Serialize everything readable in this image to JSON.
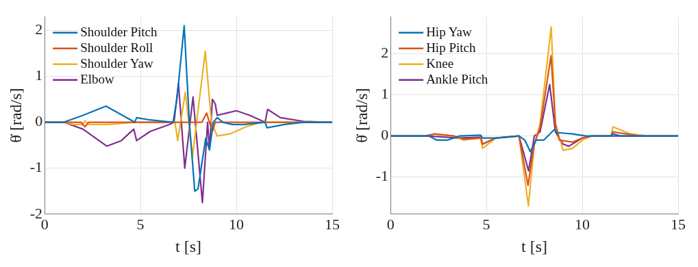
{
  "chart_data": [
    {
      "type": "line",
      "xlabel": "t [s]",
      "ylabel": "θ̇ [rad/s]",
      "xlim": [
        0,
        15
      ],
      "xticks": [
        0,
        5,
        10,
        15
      ],
      "ylim": [
        -2,
        2.3
      ],
      "yticks": [
        -2,
        -1,
        0,
        1,
        2
      ],
      "grid": true,
      "legend": "top left",
      "marker": "none",
      "line_style": "solid",
      "series": [
        {
          "name": "Shoulder Pitch",
          "color": "#0072bd",
          "x": [
            0,
            1,
            2,
            3.2,
            4.7,
            4.8,
            5.5,
            6.7,
            6.9,
            7.28,
            7.55,
            7.83,
            8.0,
            8.4,
            8.6,
            8.8,
            9.0,
            9.3,
            9.8,
            10.4,
            11.5,
            11.6,
            12.5,
            13.5,
            15
          ],
          "values": [
            0,
            0,
            0.15,
            0.35,
            0,
            0.1,
            0.05,
            0,
            0.5,
            2.1,
            0,
            -1.5,
            -1.45,
            -0.35,
            -0.6,
            0,
            0.1,
            0,
            -0.05,
            -0.05,
            0,
            -0.12,
            -0.05,
            0,
            0
          ]
        },
        {
          "name": "Shoulder Roll",
          "color": "#d95319",
          "x": [
            0,
            1.9,
            2.1,
            2.3,
            8.2,
            8.45,
            8.6,
            8.75,
            8.9,
            15
          ],
          "values": [
            0,
            0,
            -0.1,
            0,
            0,
            0.2,
            0,
            -0.2,
            0,
            0
          ]
        },
        {
          "name": "Shoulder Yaw",
          "color": "#edb120",
          "x": [
            0,
            1,
            1.5,
            2.0,
            2.1,
            2.3,
            3.3,
            4.7,
            6.8,
            6.94,
            7.34,
            7.71,
            8.38,
            8.7,
            9.0,
            9.7,
            10.5,
            11.3,
            15
          ],
          "values": [
            0,
            0,
            -0.05,
            -0.05,
            0.03,
            -0.05,
            -0.05,
            0,
            0,
            -0.4,
            0.65,
            -0.75,
            1.55,
            0,
            -0.3,
            -0.25,
            -0.1,
            0,
            0
          ]
        },
        {
          "name": "Elbow",
          "color": "#7e2f8e",
          "x": [
            0,
            1,
            2,
            3.24,
            4,
            4.65,
            4.8,
            5.5,
            6.5,
            6.75,
            6.98,
            7.31,
            7.74,
            8.23,
            8.5,
            8.6,
            8.75,
            8.9,
            9.0,
            9.5,
            10.0,
            10.7,
            11.5,
            11.63,
            12.3,
            13.5,
            15
          ],
          "values": [
            0,
            0,
            -0.15,
            -0.52,
            -0.4,
            -0.15,
            -0.4,
            -0.2,
            -0.05,
            0,
            0.85,
            -1,
            0.55,
            -1.75,
            0,
            -0.6,
            0.5,
            0.4,
            0.15,
            0.2,
            0.25,
            0.15,
            0,
            0.28,
            0.1,
            0.02,
            0
          ]
        }
      ]
    },
    {
      "type": "line",
      "xlabel": "t [s]",
      "ylabel": "θ̇ [rad/s]",
      "xlim": [
        0,
        15
      ],
      "xticks": [
        0,
        5,
        10,
        15
      ],
      "ylim": [
        -1.9,
        2.9
      ],
      "yticks": [
        -1,
        0,
        1,
        2
      ],
      "grid": true,
      "legend": "top left",
      "marker": "none",
      "line_style": "solid",
      "series": [
        {
          "name": "Hip Yaw",
          "color": "#0072bd",
          "x": [
            0,
            2,
            2.4,
            3,
            3.6,
            4.7,
            4.8,
            5.5,
            6.7,
            7.0,
            7.29,
            7.6,
            8.0,
            8.53,
            8.7,
            9.5,
            10.2,
            11.5,
            11.6,
            12,
            15
          ],
          "values": [
            0,
            0,
            -0.1,
            -0.1,
            0,
            0.02,
            -0.05,
            -0.05,
            0,
            -0.1,
            -0.38,
            -0.1,
            -0.1,
            0.15,
            0.08,
            0.05,
            0,
            0,
            0.05,
            0,
            0
          ]
        },
        {
          "name": "Hip Pitch",
          "color": "#d95319",
          "x": [
            0,
            1.8,
            2.3,
            3.3,
            3.8,
            4.7,
            4.8,
            5.5,
            6.7,
            7.17,
            7.5,
            7.8,
            8.37,
            8.6,
            8.8,
            9.5,
            10.0,
            10.5,
            11.5,
            11.6,
            13,
            15
          ],
          "values": [
            0,
            0,
            0.05,
            0,
            -0.08,
            -0.05,
            -0.2,
            -0.05,
            0,
            -1.2,
            -0.2,
            0.2,
            1.95,
            0.3,
            -0.1,
            -0.15,
            -0.05,
            0,
            0,
            0.1,
            0,
            0
          ]
        },
        {
          "name": "Knee",
          "color": "#edb120",
          "x": [
            0,
            1.8,
            2.3,
            3.3,
            3.8,
            4.7,
            4.8,
            5.5,
            6.7,
            7.19,
            7.5,
            7.8,
            8.38,
            8.6,
            9.0,
            9.5,
            10.0,
            10.5,
            11.5,
            11.6,
            12.5,
            13.5,
            15
          ],
          "values": [
            0,
            0,
            0.05,
            0,
            -0.1,
            -0.05,
            -0.3,
            -0.05,
            0,
            -1.7,
            -0.2,
            0.3,
            2.65,
            0.3,
            -0.35,
            -0.3,
            -0.1,
            0,
            0,
            0.22,
            0.05,
            0,
            0
          ]
        },
        {
          "name": "Ankle Pitch",
          "color": "#7e2f8e",
          "x": [
            0,
            2,
            3.5,
            4.7,
            4.8,
            5.5,
            6.7,
            7.2,
            7.5,
            7.8,
            8.3,
            8.6,
            9.0,
            9.3,
            10.0,
            10.5,
            15
          ],
          "values": [
            0,
            0,
            -0.05,
            -0.03,
            -0.2,
            -0.05,
            0,
            -0.85,
            0,
            0.1,
            1.25,
            0.1,
            -0.2,
            -0.25,
            -0.05,
            0,
            0
          ]
        }
      ]
    }
  ]
}
